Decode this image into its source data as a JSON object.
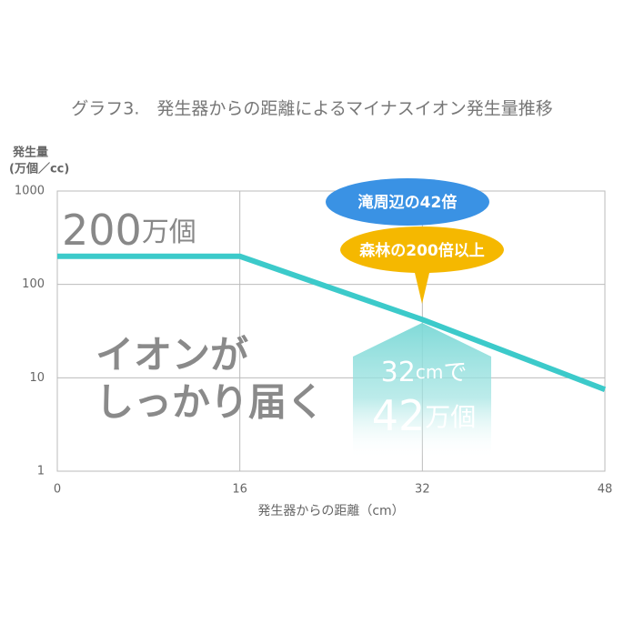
{
  "chart_data": {
    "type": "line",
    "title": "グラフ3.　発生器からの距離によるマイナスイオン発生量推移",
    "ylabel": "発生量",
    "ylabel_unit": "(万個／cc)",
    "xlabel": "発生器からの距離（cm）",
    "x": [
      0,
      16,
      32,
      48
    ],
    "series": [
      {
        "name": "マイナスイオン発生量",
        "color": "#3ccaca",
        "values": [
          200,
          200,
          42,
          7.5
        ]
      }
    ],
    "xlim": [
      0,
      48
    ],
    "xticks": [
      0,
      16,
      32,
      48
    ],
    "ylim": [
      1,
      1000
    ],
    "yticks": [
      1,
      10,
      100,
      1000
    ],
    "log_y": true,
    "grid": true,
    "annotations": {
      "start_number": "200",
      "start_unit": "万個",
      "message_1": "イオンが",
      "message_2": "しっかり届く",
      "arrow_number_1": "32",
      "arrow_unit_1": "cm",
      "arrow_suffix": "で",
      "arrow_number_2": "42",
      "arrow_unit_2": "万個",
      "bubble_blue": "滝周辺の42倍",
      "bubble_yellow": "森林の200倍以上"
    }
  }
}
